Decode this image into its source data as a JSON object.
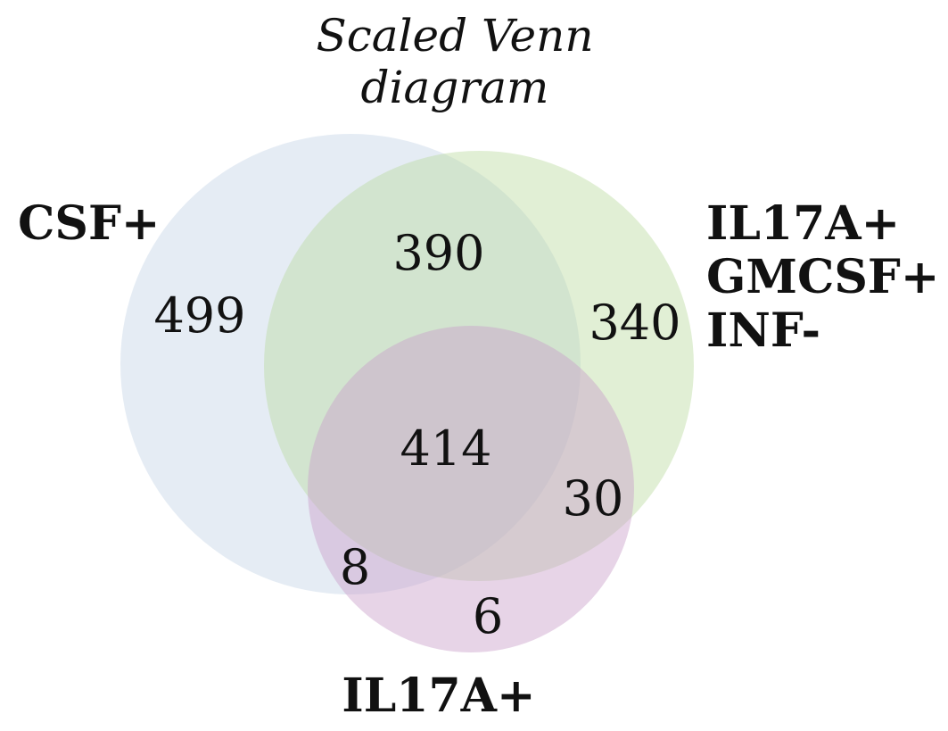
{
  "chart_data": {
    "type": "venn",
    "title": [
      "Scaled Venn",
      "diagram"
    ],
    "sets": [
      {
        "name": "CSF+",
        "label_lines": [
          "CSF+"
        ],
        "color": "#b0c4de"
      },
      {
        "name": "IL17A+ GMCSF+ INF-",
        "label_lines": [
          "IL17A+",
          "GMCSF+",
          "INF-"
        ],
        "color": "#b8d89a"
      },
      {
        "name": "IL17A+",
        "label_lines": [
          "IL17A+"
        ],
        "color": "#c9a0c9"
      }
    ],
    "regions": {
      "only_csf": "499",
      "csf_gmcsf": "390",
      "only_gmcsf": "340",
      "all_three": "414",
      "gmcsf_il17": "30",
      "csf_il17": "8",
      "only_il17": "6"
    }
  }
}
